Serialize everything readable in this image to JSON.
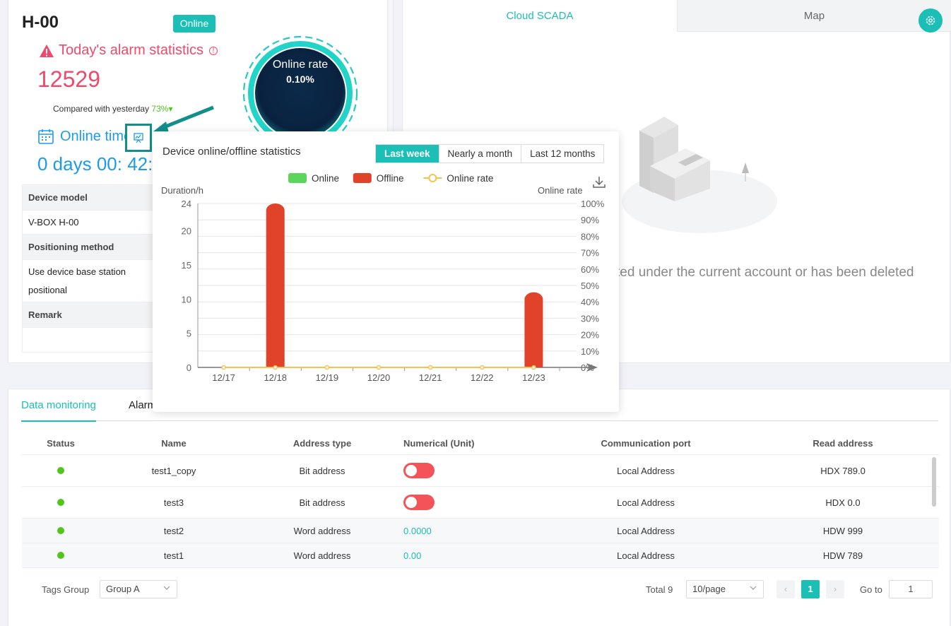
{
  "device": {
    "title": "H-00",
    "status": "Online"
  },
  "alarm": {
    "title": "Today's alarm statistics",
    "info_icon": "info-circle-icon",
    "count": "12529",
    "compare_label": "Compared with yesterday",
    "compare_pct": "73%",
    "compare_arrow": "▾"
  },
  "gauge": {
    "label": "Online rate",
    "value": "0.10%",
    "rate": 0.001
  },
  "online_time": {
    "title": "Online time",
    "value": "0 days 00: 42:"
  },
  "info_table": {
    "device_model_label": "Device model",
    "device_model_value": "V-BOX H-00",
    "positioning_label": "Positioning method",
    "positioning_value_line1": "Use device base station",
    "positioning_value_line2": "positional",
    "remark_label": "Remark",
    "remark_value": ""
  },
  "right_tabs": {
    "active": "Cloud SCADA",
    "inactive": "Map"
  },
  "empty_state": {
    "text": "ted under the current account or has been deleted"
  },
  "popup": {
    "title": "Device online/offline statistics",
    "ranges": [
      "Last week",
      "Nearly a month",
      "Last 12 months"
    ],
    "active_range": 0
  },
  "chart_data": {
    "type": "bar",
    "categories": [
      "12/17",
      "12/18",
      "12/19",
      "12/20",
      "12/21",
      "12/22",
      "12/23"
    ],
    "series": [
      {
        "name": "Online",
        "type": "bar",
        "color": "#5bd65b",
        "values": [
          0,
          0,
          0,
          0,
          0,
          0,
          0
        ]
      },
      {
        "name": "Offline",
        "type": "bar",
        "color": "#e0432a",
        "values": [
          0,
          24,
          0,
          0,
          0,
          0,
          11
        ]
      },
      {
        "name": "Online rate",
        "type": "line",
        "color": "#f5c14f",
        "values": [
          0,
          0,
          0,
          0,
          0,
          0,
          0
        ]
      }
    ],
    "ylabel": "Duration/h",
    "y2label": "Online rate",
    "ylim": [
      0,
      24
    ],
    "yticks": [
      "0",
      "5",
      "10",
      "15",
      "20",
      "24"
    ],
    "y2lim": [
      0,
      100
    ],
    "y2ticks": [
      "0%",
      "10%",
      "20%",
      "30%",
      "40%",
      "50%",
      "60%",
      "70%",
      "80%",
      "90%",
      "100%"
    ],
    "legend_position": "top-center",
    "grid": true
  },
  "bottom_tabs": {
    "active": "Data monitoring",
    "second": "Alarm"
  },
  "grid": {
    "headers": [
      "Status",
      "Name",
      "Address type",
      "Numerical (Unit)",
      "Communication port",
      "Read address"
    ],
    "rows": [
      {
        "name": "test1_copy",
        "address_type": "Bit address",
        "value": "",
        "port": "Local Address",
        "read_address": "HDX 789.0"
      },
      {
        "name": "test3",
        "address_type": "Bit address",
        "value": "",
        "port": "Local Address",
        "read_address": "HDX 0.0"
      },
      {
        "name": "test2",
        "address_type": "Word address",
        "value": "0.0000",
        "port": "Local Address",
        "read_address": "HDW 999"
      },
      {
        "name": "test1",
        "address_type": "Word address",
        "value": "0.00",
        "port": "Local Address",
        "read_address": "HDW 789"
      }
    ]
  },
  "footer": {
    "tags_group_label": "Tags Group",
    "tags_group_value": "Group A",
    "total_label": "Total 9",
    "page_size": "10/page",
    "current_page": "1",
    "goto_label": "Go to",
    "goto_value": "1"
  },
  "colors": {
    "accent": "#1bbfb5",
    "alarm": "#ef4a6b",
    "blue": "#1e9be8",
    "offline": "#e0432a"
  }
}
